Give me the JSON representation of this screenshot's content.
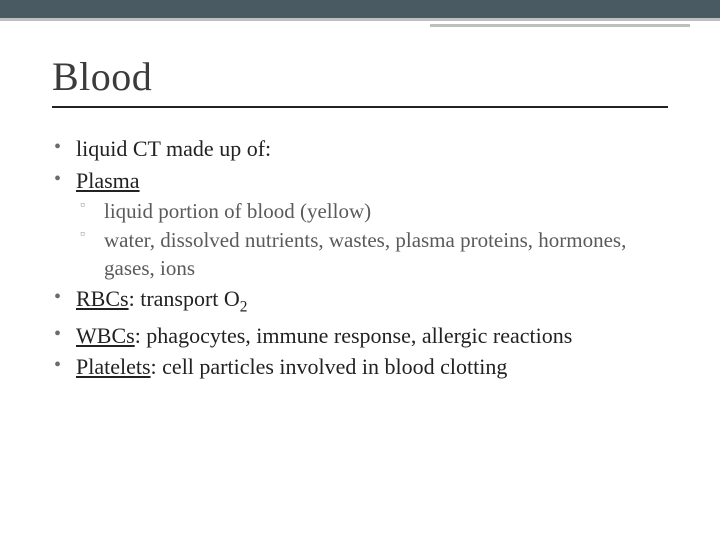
{
  "colors": {
    "topbar": "#4a5a63",
    "accent": "#bfbfbf",
    "title": "#3b3b3b",
    "underline": "#222222",
    "bullet1": "#6b6b6b",
    "bullet2": "#9a9a9a",
    "subtext": "#5a5a5a",
    "background": "#ffffff"
  },
  "typography": {
    "font_family": "Georgia / Times New Roman serif",
    "title_fontsize": 40,
    "body_fontsize": 22,
    "sub_fontsize": 21
  },
  "title": "Blood",
  "bullets": [
    {
      "text": "liquid CT made up of:"
    },
    {
      "underline": "Plasma",
      "sub": [
        "liquid portion of blood (yellow)",
        "water, dissolved nutrients, wastes, plasma proteins, hormones, gases, ions"
      ]
    },
    {
      "underline": "RBCs",
      "rest": ": transport O",
      "subscript": "2"
    },
    {
      "underline": "WBCs",
      "rest": ": phagocytes, immune response, allergic reactions"
    },
    {
      "underline": "Platelets",
      "rest": ": cell particles involved in blood clotting"
    }
  ]
}
